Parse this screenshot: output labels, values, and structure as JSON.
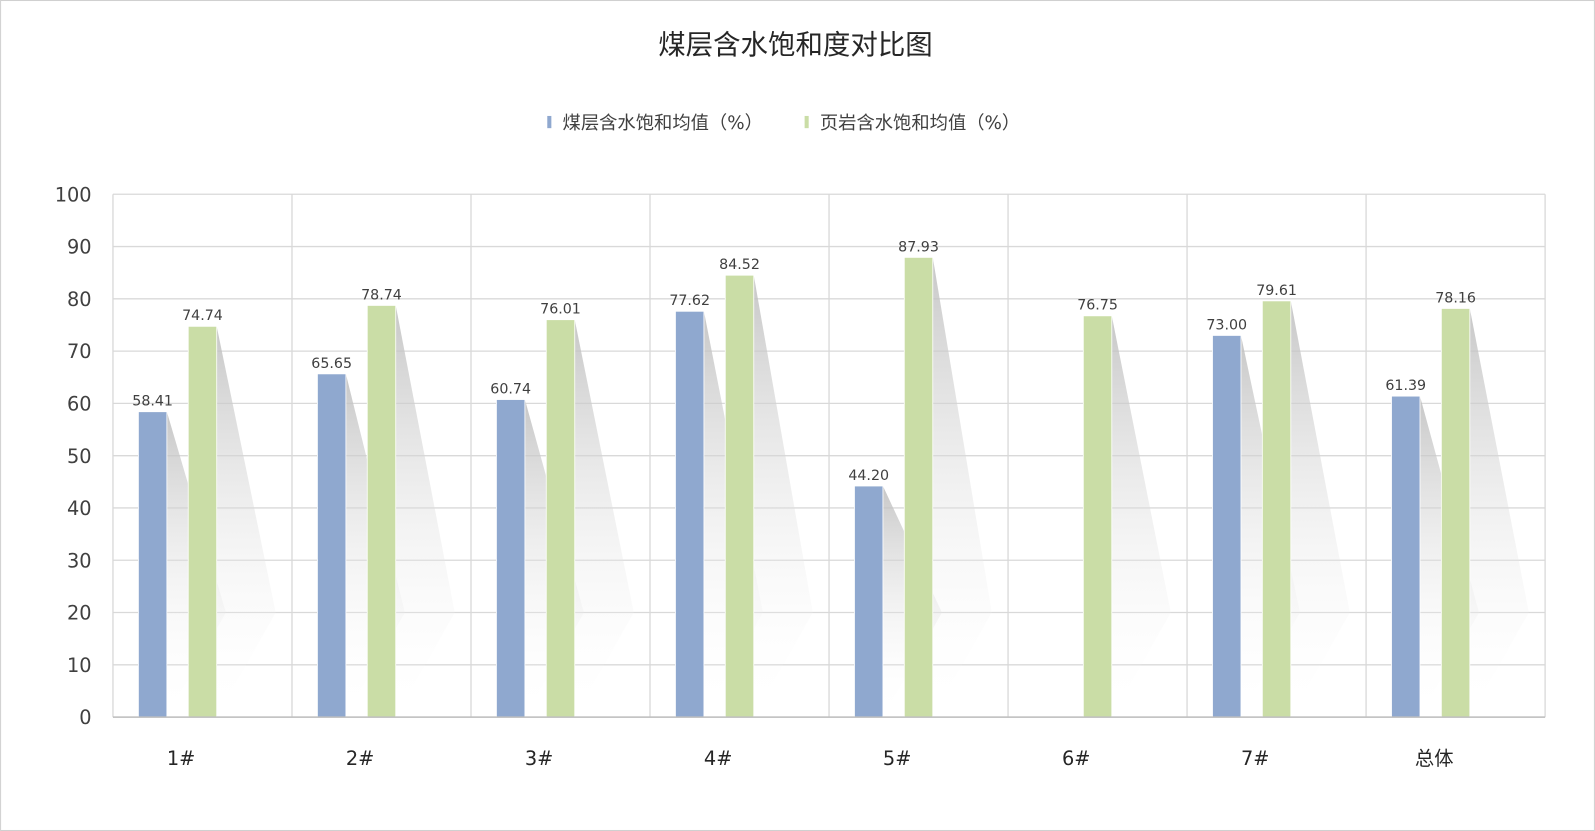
{
  "chart_data": {
    "type": "bar",
    "title": "煤层含水饱和度对比图",
    "categories": [
      "1#",
      "2#",
      "3#",
      "4#",
      "5#",
      "6#",
      "7#",
      "总体"
    ],
    "series": [
      {
        "name": "煤层含水饱和均值（%）",
        "color": "#8FA8CF",
        "values": [
          58.41,
          65.65,
          60.74,
          77.62,
          44.2,
          null,
          73.0,
          61.39
        ],
        "labels": [
          "58.41",
          "65.65",
          "60.74",
          "77.62",
          "44.20",
          "",
          "73.00",
          "61.39"
        ]
      },
      {
        "name": "页岩含水饱和均值（%）",
        "color": "#CADDA6",
        "values": [
          74.74,
          78.74,
          76.01,
          84.52,
          87.93,
          76.75,
          79.61,
          78.16
        ],
        "labels": [
          "74.74",
          "78.74",
          "76.01",
          "84.52",
          "87.93",
          "76.75",
          "79.61",
          "78.16"
        ]
      }
    ],
    "ylim": [
      0,
      100
    ],
    "yticks": [
      "0",
      "10",
      "20",
      "30",
      "40",
      "50",
      "60",
      "70",
      "80",
      "90",
      "100"
    ],
    "grid": true,
    "legend": "top"
  }
}
